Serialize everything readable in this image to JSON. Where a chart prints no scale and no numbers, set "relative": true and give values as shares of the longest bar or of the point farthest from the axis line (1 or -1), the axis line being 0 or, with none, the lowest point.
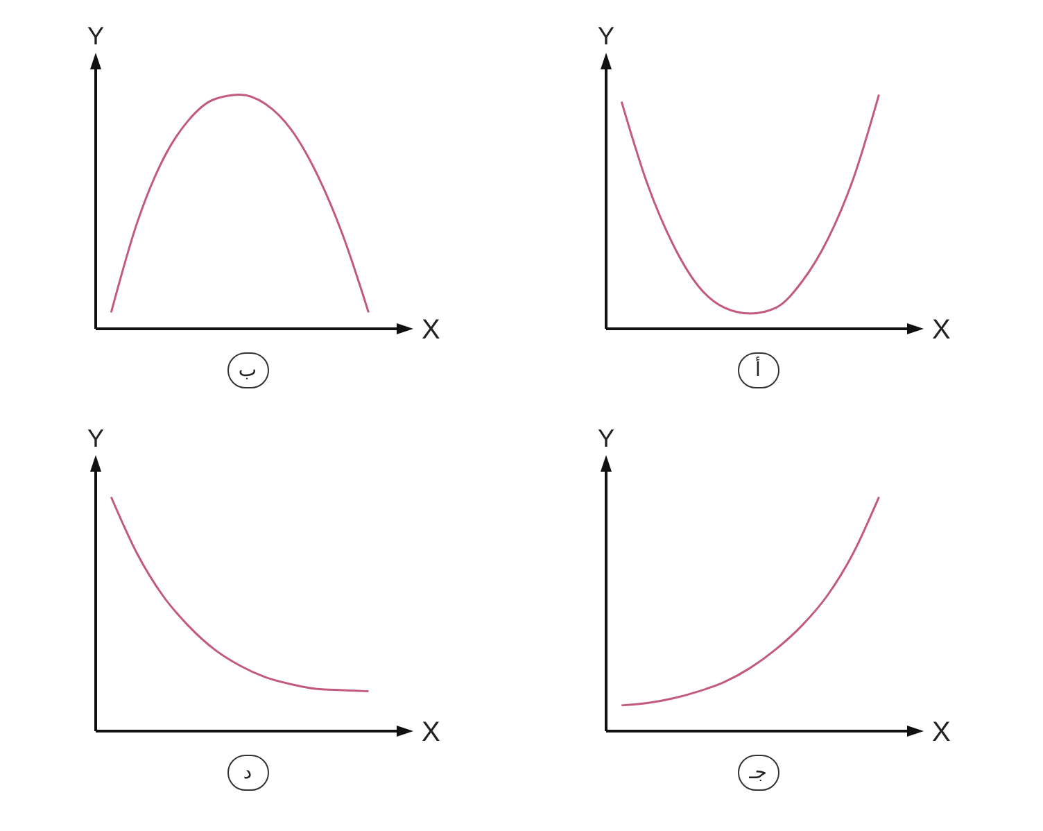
{
  "chart_data": [
    {
      "type": "line",
      "relative": true,
      "xlabel": "X",
      "ylabel": "Y",
      "annotations": [
        "أ"
      ],
      "categories": [
        null,
        null,
        null,
        null,
        null,
        null,
        null,
        null,
        null,
        null,
        null
      ],
      "series": [
        {
          "color": "#c25a7c",
          "values": [
            0.97,
            0.62,
            0.36,
            0.18,
            0.09,
            0.065,
            0.09,
            0.2,
            0.38,
            0.64,
            1.0
          ]
        }
      ]
    },
    {
      "type": "line",
      "relative": true,
      "xlabel": "X",
      "ylabel": "Y",
      "annotations": [
        "ب"
      ],
      "categories": [
        null,
        null,
        null,
        null,
        null,
        null,
        null,
        null,
        null,
        null,
        null
      ],
      "series": [
        {
          "color": "#c25a7c",
          "values": [
            0.07,
            0.45,
            0.72,
            0.89,
            0.98,
            1.0,
            0.96,
            0.85,
            0.66,
            0.4,
            0.07
          ]
        }
      ]
    },
    {
      "type": "line",
      "relative": true,
      "xlabel": "X",
      "ylabel": "Y",
      "annotations": [
        "جـ"
      ],
      "categories": [
        null,
        null,
        null,
        null,
        null,
        null,
        null,
        null,
        null,
        null,
        null
      ],
      "series": [
        {
          "color": "#c25a7c",
          "values": [
            0.11,
            0.12,
            0.14,
            0.17,
            0.21,
            0.27,
            0.35,
            0.45,
            0.58,
            0.76,
            1.0
          ]
        }
      ]
    },
    {
      "type": "line",
      "relative": true,
      "xlabel": "X",
      "ylabel": "Y",
      "annotations": [
        "د"
      ],
      "categories": [
        null,
        null,
        null,
        null,
        null,
        null,
        null,
        null,
        null,
        null,
        null
      ],
      "series": [
        {
          "color": "#c25a7c",
          "values": [
            1.0,
            0.76,
            0.58,
            0.45,
            0.35,
            0.28,
            0.23,
            0.2,
            0.18,
            0.175,
            0.17
          ]
        }
      ]
    }
  ]
}
